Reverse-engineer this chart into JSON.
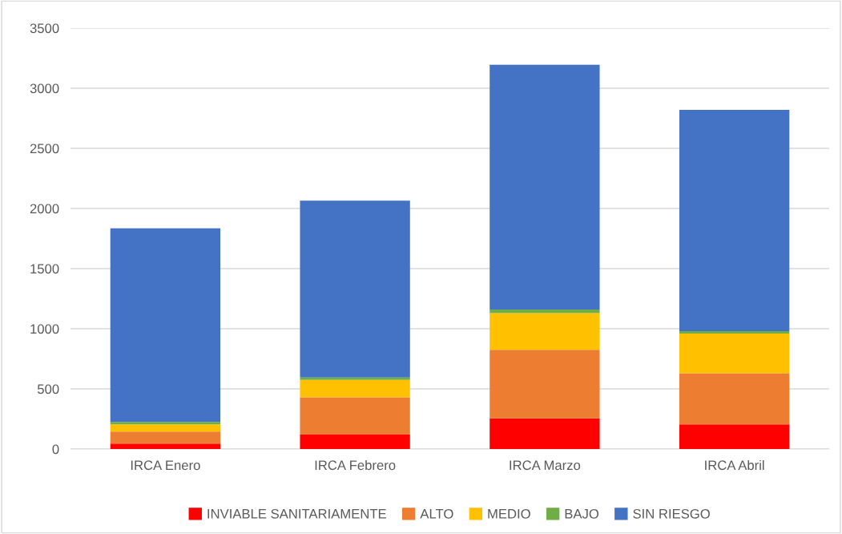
{
  "chart_data": {
    "type": "bar",
    "stacked": true,
    "categories": [
      "IRCA Enero",
      "IRCA Febrero",
      "IRCA Marzo",
      "IRCA Abril"
    ],
    "series": [
      {
        "name": "INVIABLE SANITARIAMENTE",
        "color": "#ff0000",
        "values": [
          45,
          120,
          255,
          205
        ]
      },
      {
        "name": "ALTO",
        "color": "#ed7d31",
        "values": [
          100,
          310,
          570,
          425
        ]
      },
      {
        "name": "MEDIO",
        "color": "#ffc000",
        "values": [
          60,
          145,
          305,
          330
        ]
      },
      {
        "name": "BAJO",
        "color": "#70ad47",
        "values": [
          20,
          20,
          30,
          20
        ]
      },
      {
        "name": "SIN RIESGO",
        "color": "#4472c4",
        "values": [
          1610,
          1470,
          2035,
          1840
        ]
      }
    ],
    "ylim": [
      0,
      3500
    ],
    "yticks": [
      0,
      500,
      1000,
      1500,
      2000,
      2500,
      3000,
      3500
    ],
    "grid": "y",
    "legend": "bottom"
  }
}
